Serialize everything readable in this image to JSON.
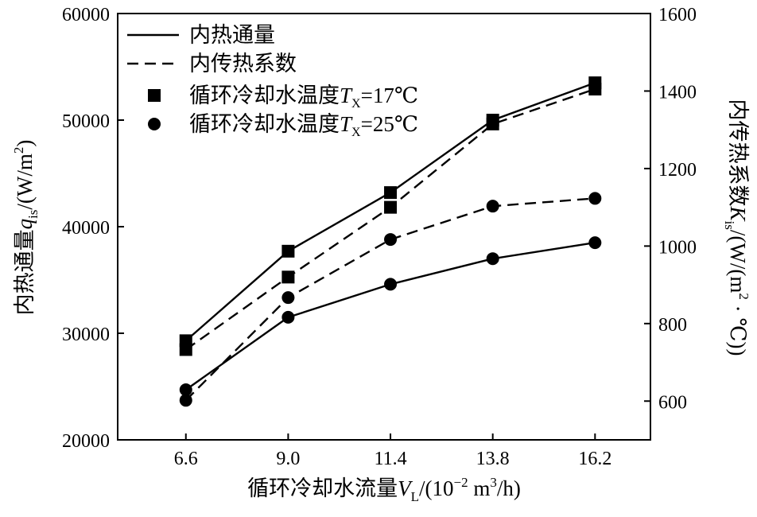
{
  "chart_data": {
    "type": "line",
    "x": [
      6.6,
      9.0,
      11.4,
      13.8,
      16.2
    ],
    "x_tick_labels": [
      "6.6",
      "9.0",
      "11.4",
      "13.8",
      "16.2"
    ],
    "xlim": [
      5.0,
      17.5
    ],
    "y_left": {
      "lim": [
        20000,
        60000
      ],
      "ticks": [
        20000,
        30000,
        40000,
        50000,
        60000
      ]
    },
    "y_right": {
      "lim": [
        500,
        1600
      ],
      "ticks": [
        600,
        800,
        1000,
        1200,
        1400,
        1600
      ]
    },
    "xlabel": {
      "main": "循环冷却水流量",
      "var": "V",
      "sub": "L",
      "unit_pre": "/(10",
      "unit_sup": "−2",
      "unit_mid": " m",
      "unit_sup2": "3",
      "unit_post": "/h)"
    },
    "ylabel_left": {
      "main": "内热通量",
      "var": "q",
      "sub": "is",
      "unit_pre": "/(W/m",
      "unit_sup": "2",
      "unit_post": ")"
    },
    "ylabel_right": {
      "main": "内传热系数",
      "var": "K",
      "sub": "is",
      "unit_pre": "/(W/(m",
      "unit_sup": "2",
      "unit_post": " · ℃))"
    },
    "legend": [
      {
        "label": "内热通量",
        "style": "solid-line"
      },
      {
        "label": "内传热系数",
        "style": "dashed-line"
      },
      {
        "label_pre": "循环冷却水温度",
        "var": "T",
        "sub": "X",
        "label_post": "=17℃",
        "style": "square-marker"
      },
      {
        "label_pre": "循环冷却水温度",
        "var": "T",
        "sub": "X",
        "label_post": "=25℃",
        "style": "circle-marker"
      }
    ],
    "series": [
      {
        "name": "内热通量 Tx=17℃",
        "axis": "left",
        "line": "solid",
        "marker": "square",
        "values": [
          29300,
          37700,
          43200,
          50000,
          53500
        ]
      },
      {
        "name": "内传热系数 Tx=17℃",
        "axis": "right",
        "line": "dashed",
        "marker": "square",
        "values": [
          733,
          920,
          1100,
          1315,
          1405
        ]
      },
      {
        "name": "内热通量 Tx=25℃",
        "axis": "left",
        "line": "solid",
        "marker": "circle",
        "values": [
          24700,
          31500,
          34600,
          37000,
          38500
        ]
      },
      {
        "name": "内传热系数 Tx=25℃",
        "axis": "right",
        "line": "dashed",
        "marker": "circle",
        "values": [
          602,
          867,
          1017,
          1103,
          1123
        ]
      }
    ],
    "colors": {
      "ink": "#000000",
      "background": "#ffffff"
    }
  }
}
